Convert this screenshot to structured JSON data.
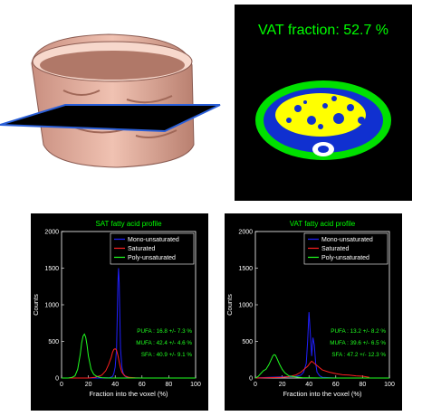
{
  "vat_fraction_label": "VAT fraction: 52.7 %",
  "colors": {
    "mono": "#2020ff",
    "saturated": "#ff2020",
    "poly": "#20ff20",
    "title": "#00ff00",
    "vat_fill": "#ffff00",
    "sat_ring": "#00e000",
    "muscle": "#1030d0",
    "skin": "#e8b0a0"
  },
  "chart_data": [
    {
      "type": "line",
      "title": "SAT fatty acid profile",
      "xlabel": "Fraction into the voxel (%)",
      "ylabel": "Counts",
      "xlim": [
        0,
        100
      ],
      "ylim": [
        0,
        2000
      ],
      "xticks": [
        0,
        20,
        40,
        60,
        80,
        100
      ],
      "yticks": [
        0,
        500,
        1000,
        1500,
        2000
      ],
      "legend": [
        "Mono-unsaturated",
        "Saturated",
        "Poly-unsaturated"
      ],
      "legend_position": "top-right",
      "annotations": [
        "PUFA : 16.8 +/- 7.3 %",
        "MUFA : 42.4 +/- 4.6 %",
        "SFA : 40.9 +/- 9.1 %"
      ],
      "series": [
        {
          "name": "Mono-unsaturated",
          "color_key": "mono",
          "x": [
            0,
            30,
            36,
            38,
            39,
            40,
            41,
            41.5,
            42,
            42.5,
            43,
            43.5,
            44,
            45,
            46,
            48,
            52,
            60,
            100
          ],
          "y": [
            0,
            0,
            5,
            20,
            60,
            150,
            400,
            800,
            1300,
            1500,
            1300,
            800,
            400,
            150,
            60,
            15,
            3,
            0,
            0
          ]
        },
        {
          "name": "Saturated",
          "color_key": "saturated",
          "x": [
            0,
            20,
            25,
            30,
            33,
            35,
            37,
            38,
            39,
            40,
            41,
            42,
            43,
            44,
            45,
            47,
            50,
            55,
            60,
            100
          ],
          "y": [
            0,
            0,
            10,
            40,
            100,
            180,
            280,
            350,
            390,
            400,
            380,
            310,
            220,
            140,
            80,
            30,
            10,
            2,
            0,
            0
          ]
        },
        {
          "name": "Poly-unsaturated",
          "color_key": "poly",
          "x": [
            0,
            5,
            8,
            10,
            12,
            14,
            15,
            16,
            17,
            18,
            19,
            20,
            22,
            24,
            26,
            28,
            30,
            35,
            40,
            100
          ],
          "y": [
            0,
            0,
            10,
            30,
            120,
            330,
            480,
            570,
            600,
            560,
            450,
            300,
            120,
            50,
            25,
            12,
            5,
            0,
            0,
            0
          ]
        }
      ]
    },
    {
      "type": "line",
      "title": "VAT fatty acid profile",
      "xlabel": "Fraction into the voxel (%)",
      "ylabel": "Counts",
      "xlim": [
        0,
        100
      ],
      "ylim": [
        0,
        2000
      ],
      "xticks": [
        0,
        20,
        40,
        60,
        80,
        100
      ],
      "yticks": [
        0,
        500,
        1000,
        1500,
        2000
      ],
      "legend": [
        "Mono-unsaturated",
        "Saturated",
        "Poly-unsaturated"
      ],
      "legend_position": "top-right",
      "annotations": [
        "PUFA : 13.2 +/- 8.2 %",
        "MUFA : 39.6 +/- 6.5 %",
        "SFA : 47.2 +/- 12.3 %"
      ],
      "series": [
        {
          "name": "Mono-unsaturated",
          "color_key": "mono",
          "x": [
            0,
            10,
            20,
            30,
            34,
            36,
            38,
            39,
            40,
            41,
            42,
            43,
            44,
            45,
            46,
            48,
            50,
            55,
            60,
            100
          ],
          "y": [
            0,
            10,
            15,
            20,
            40,
            80,
            200,
            500,
            900,
            600,
            300,
            550,
            450,
            200,
            80,
            30,
            10,
            5,
            0,
            0
          ]
        },
        {
          "name": "Saturated",
          "color_key": "saturated",
          "x": [
            0,
            10,
            20,
            25,
            30,
            34,
            37,
            39,
            40,
            41,
            42,
            44,
            46,
            48,
            50,
            55,
            60,
            65,
            70,
            75,
            80,
            85
          ],
          "y": [
            0,
            5,
            10,
            20,
            40,
            80,
            130,
            160,
            185,
            210,
            230,
            200,
            170,
            140,
            110,
            80,
            60,
            45,
            40,
            30,
            25,
            10
          ]
        },
        {
          "name": "Poly-unsaturated",
          "color_key": "poly",
          "x": [
            0,
            2,
            4,
            6,
            8,
            10,
            12,
            13,
            14,
            15,
            16,
            18,
            20,
            22,
            25,
            30,
            35,
            40,
            50,
            100
          ],
          "y": [
            0,
            20,
            60,
            100,
            120,
            180,
            260,
            300,
            320,
            310,
            270,
            190,
            120,
            70,
            30,
            15,
            5,
            2,
            0,
            0
          ]
        }
      ]
    }
  ]
}
